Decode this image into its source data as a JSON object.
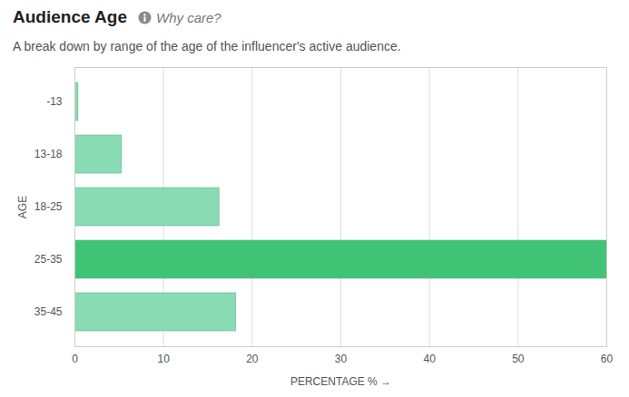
{
  "chart_data": {
    "type": "bar",
    "title": "Audience Age",
    "subtitle": "A break down by range of the age of the influencer's active audience.",
    "annotations": [
      "Why care?"
    ],
    "orientation": "horizontal",
    "xlabel": "PERCENTAGE %",
    "ylabel": "AGE",
    "categories": [
      "-13",
      "13-18",
      "18-25",
      "25-35",
      "35-45"
    ],
    "values": [
      0.4,
      5.3,
      16.3,
      60,
      18.2
    ],
    "colors": [
      "#88dbb3",
      "#88dbb3",
      "#88dbb3",
      "#40c375",
      "#88dbb3"
    ],
    "xlim": [
      0,
      60
    ],
    "xticks": [
      0,
      10,
      20,
      30,
      40,
      50,
      60
    ],
    "grid": true
  }
}
